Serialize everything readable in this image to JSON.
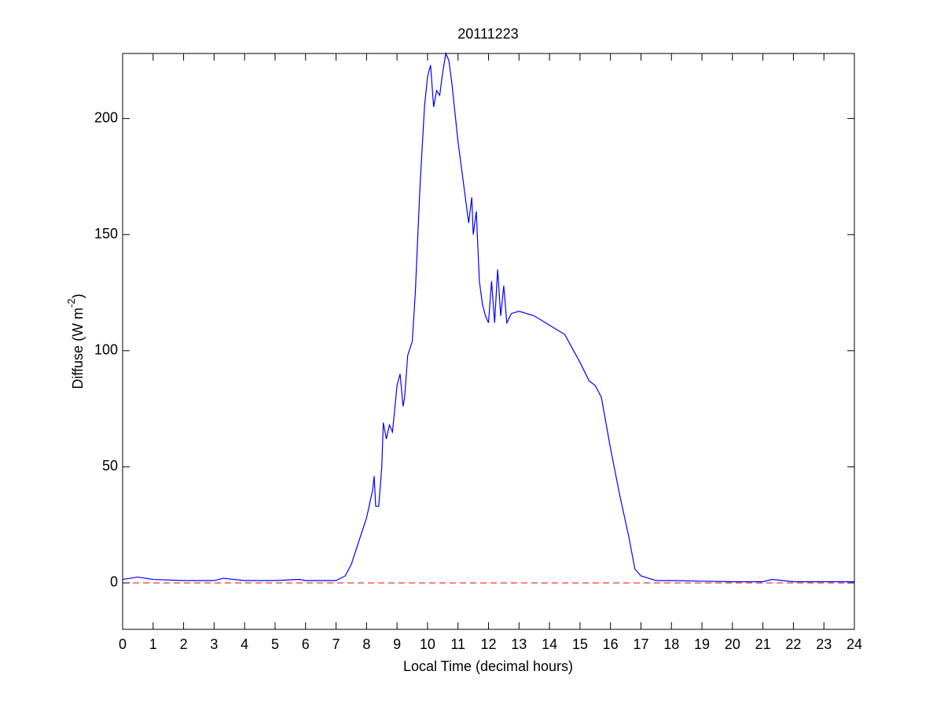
{
  "chart_data": {
    "type": "line",
    "title": "20111223",
    "xlabel": "Local Time (decimal hours)",
    "ylabel": [
      "Diffuse (W m",
      "-2",
      ")"
    ],
    "x": [
      0,
      0.5,
      1,
      2,
      3,
      3.3,
      4,
      5,
      5.8,
      6,
      7,
      7.3,
      7.5,
      7.75,
      8,
      8.2,
      8.25,
      8.3,
      8.4,
      8.5,
      8.55,
      8.65,
      8.75,
      8.85,
      9,
      9.1,
      9.2,
      9.25,
      9.35,
      9.5,
      9.6,
      9.75,
      9.9,
      10,
      10.1,
      10.2,
      10.3,
      10.4,
      10.5,
      10.6,
      10.7,
      10.8,
      11,
      11.2,
      11.35,
      11.45,
      11.5,
      11.6,
      11.7,
      11.8,
      11.9,
      12,
      12.1,
      12.2,
      12.3,
      12.4,
      12.5,
      12.6,
      12.75,
      13,
      13.5,
      14,
      14.5,
      15,
      15.3,
      15.5,
      15.7,
      16,
      16.3,
      16.6,
      16.8,
      17,
      17.5,
      18,
      20,
      21,
      21.3,
      22,
      23,
      24
    ],
    "series": [
      {
        "color": "#0000ff",
        "values": [
          1.5,
          2.5,
          1.5,
          1,
          1,
          2,
          1,
          1,
          1.5,
          1,
          1,
          3,
          8,
          18,
          28,
          40,
          46,
          33,
          33,
          50,
          69,
          62,
          68,
          65,
          85,
          90,
          76,
          80,
          98,
          104,
          125,
          170,
          205,
          218,
          223,
          205,
          212,
          210,
          220,
          228,
          225,
          215,
          190,
          170,
          155,
          166,
          150,
          160,
          130,
          120,
          115,
          112,
          130,
          112,
          135,
          115,
          128,
          112,
          116,
          117,
          115,
          111,
          107,
          95,
          87,
          85,
          80,
          58,
          38,
          20,
          6,
          3,
          1,
          1,
          0.5,
          0.5,
          1.5,
          0.5,
          0.5,
          0.5
        ]
      }
    ],
    "reference_lines": [
      {
        "y": 0,
        "color": "#ff0000",
        "style": "dashed"
      }
    ],
    "xlim": [
      0,
      24
    ],
    "xticks": [
      0,
      1,
      2,
      3,
      4,
      5,
      6,
      7,
      8,
      9,
      10,
      11,
      12,
      13,
      14,
      15,
      16,
      17,
      18,
      19,
      20,
      21,
      22,
      23,
      24
    ],
    "ylim": [
      -20,
      228
    ],
    "yticks": [
      0,
      50,
      100,
      150,
      200
    ]
  }
}
